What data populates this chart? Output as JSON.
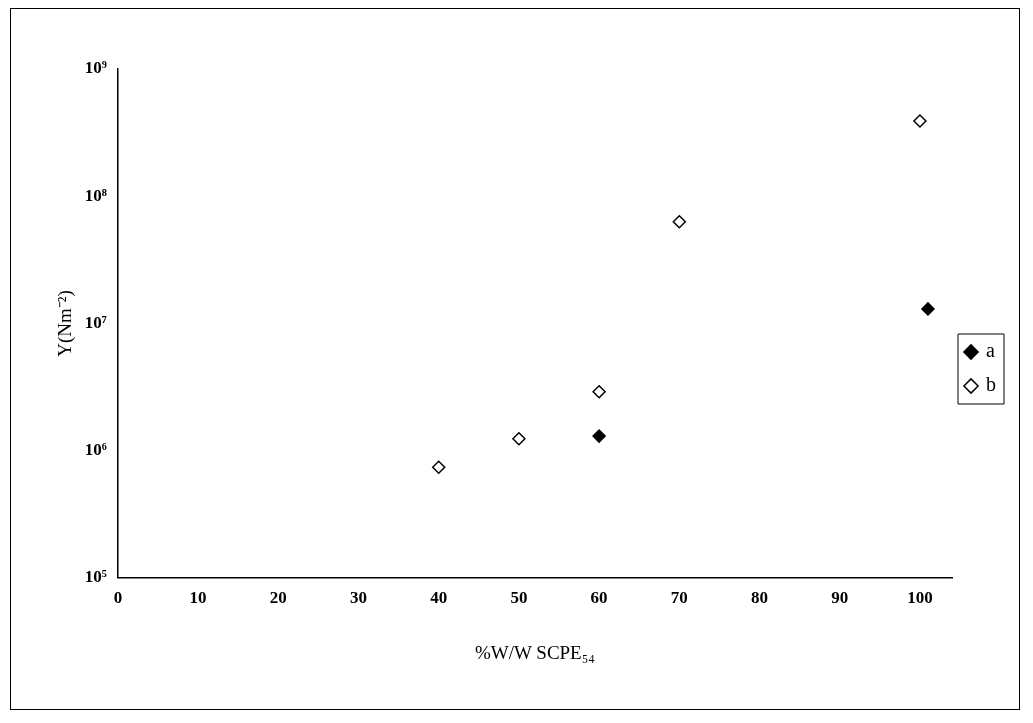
{
  "chart_data": {
    "type": "scatter",
    "xlabel": "%W/W SCPE₅₄",
    "ylabel": "Y(Nm⁻²)",
    "log": "y",
    "xlim": [
      0,
      104
    ],
    "xticks": [
      0,
      10,
      20,
      30,
      40,
      50,
      60,
      70,
      80,
      90,
      100
    ],
    "ylim": [
      100000,
      1000000000
    ],
    "yticks": [
      {
        "value": 100000,
        "label": "10⁵"
      },
      {
        "value": 1000000,
        "label": "10⁶"
      },
      {
        "value": 10000000,
        "label": "10⁷"
      },
      {
        "value": 100000000,
        "label": "10⁸"
      },
      {
        "value": 1000000000,
        "label": "10⁹"
      }
    ],
    "grid": false,
    "legend": "right",
    "marker": "diamond",
    "series": [
      {
        "name": "a",
        "color": "#000000",
        "x": [
          60,
          101
        ],
        "values": [
          1300000,
          13000000
        ]
      },
      {
        "name": "b",
        "color": "#ffffff",
        "x": [
          40,
          50,
          60,
          70,
          100
        ],
        "values": [
          740000,
          1240000,
          2900000,
          63000000,
          390000000
        ]
      }
    ]
  }
}
